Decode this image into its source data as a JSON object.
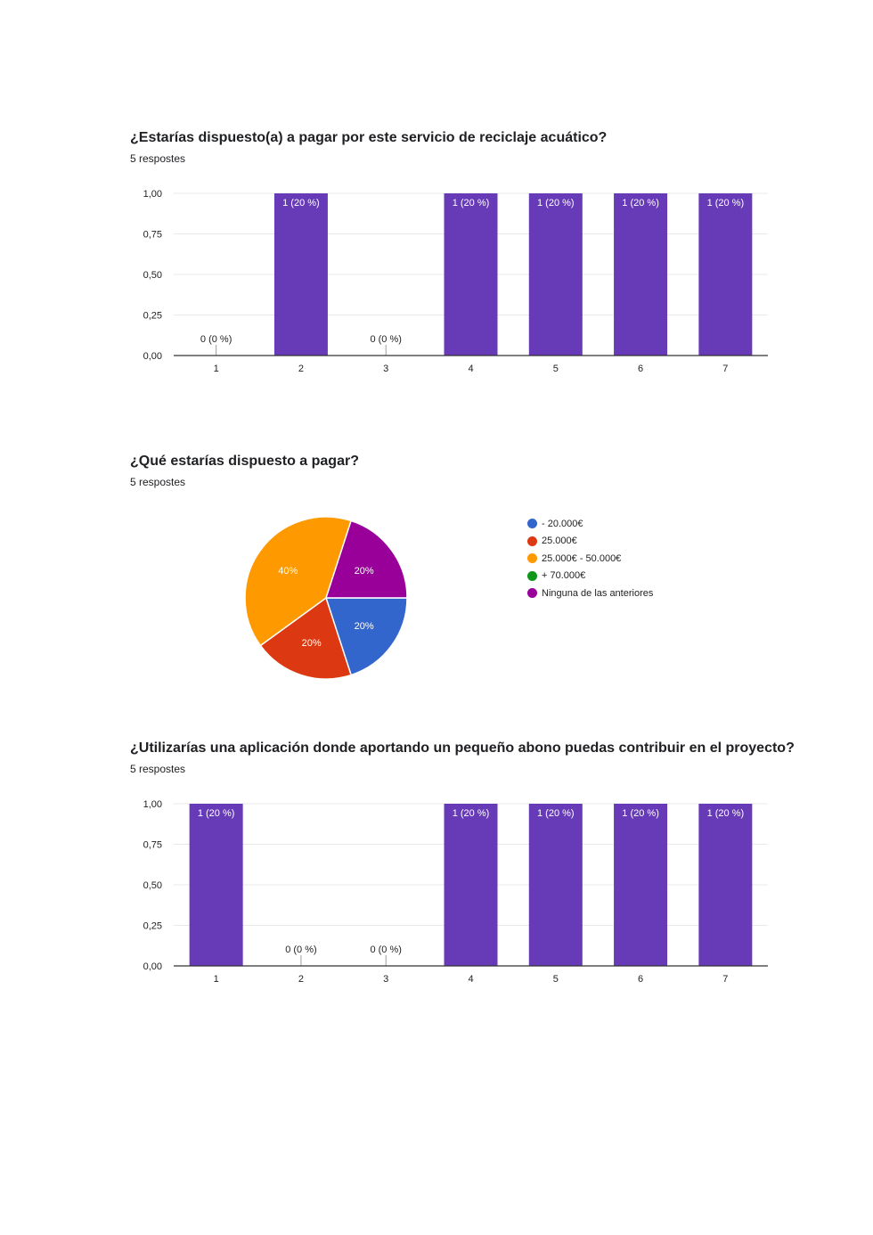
{
  "chart_data": [
    {
      "type": "bar",
      "title": "¿Estarías dispuesto(a) a pagar por este servicio de reciclaje acuático?",
      "subtitle": "5 respostes",
      "categories": [
        "1",
        "2",
        "3",
        "4",
        "5",
        "6",
        "7"
      ],
      "values": [
        0,
        1,
        0,
        1,
        1,
        1,
        1
      ],
      "data_labels": [
        "0 (0 %)",
        "1 (20 %)",
        "0 (0 %)",
        "1 (20 %)",
        "1 (20 %)",
        "1 (20 %)",
        "1 (20 %)"
      ],
      "ylim": [
        0,
        1
      ],
      "yticks": [
        "0,00",
        "0,25",
        "0,50",
        "0,75",
        "1,00"
      ],
      "xlabel": "",
      "ylabel": "",
      "color": "#673ab7",
      "grid": true
    },
    {
      "type": "pie",
      "title": "¿Qué estarías dispuesto a pagar?",
      "subtitle": "5 respostes",
      "slices": [
        {
          "label": "- 20.000€",
          "value": 20,
          "display": "20%",
          "color": "#3366cc"
        },
        {
          "label": "25.000€",
          "value": 20,
          "display": "20%",
          "color": "#dc3912"
        },
        {
          "label": "25.000€ - 50.000€",
          "value": 40,
          "display": "40%",
          "color": "#ff9900"
        },
        {
          "label": "+ 70.000€",
          "value": 0,
          "display": "",
          "color": "#109618"
        },
        {
          "label": "Ninguna de las anteriores",
          "value": 20,
          "display": "20%",
          "color": "#990099"
        }
      ],
      "legend_position": "right"
    },
    {
      "type": "bar",
      "title": "¿Utilizarías una aplicación donde aportando un pequeño abono puedas contribuir en el proyecto?",
      "subtitle": "5 respostes",
      "categories": [
        "1",
        "2",
        "3",
        "4",
        "5",
        "6",
        "7"
      ],
      "values": [
        1,
        0,
        0,
        1,
        1,
        1,
        1
      ],
      "data_labels": [
        "1 (20 %)",
        "0 (0 %)",
        "0 (0 %)",
        "1 (20 %)",
        "1 (20 %)",
        "1 (20 %)",
        "1 (20 %)"
      ],
      "ylim": [
        0,
        1
      ],
      "yticks": [
        "0,00",
        "0,25",
        "0,50",
        "0,75",
        "1,00"
      ],
      "xlabel": "",
      "ylabel": "",
      "color": "#673ab7",
      "grid": true
    }
  ]
}
